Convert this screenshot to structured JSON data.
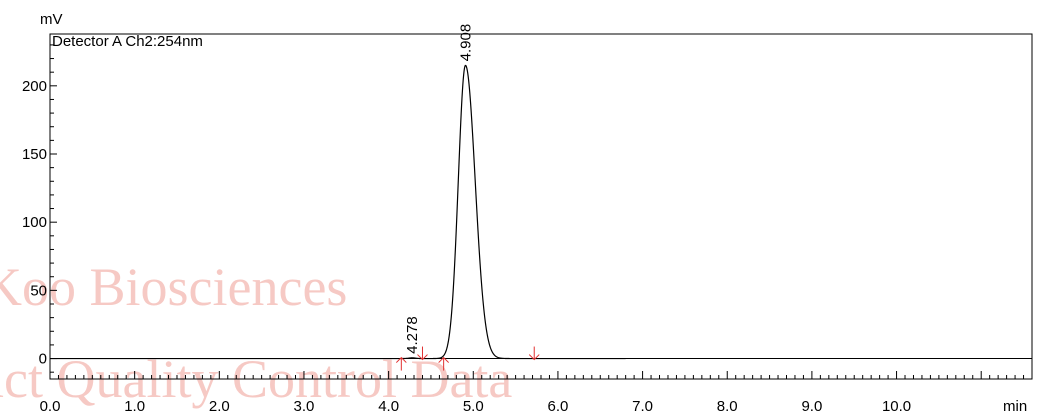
{
  "chart_data": {
    "type": "line",
    "detector_label": "Detector A Ch2:254nm",
    "xlabel": "min",
    "ylabel": "mV",
    "xlim": [
      0.0,
      11.6
    ],
    "ylim": [
      -15,
      238
    ],
    "x_ticks": [
      "0.0",
      "1.0",
      "2.0",
      "3.0",
      "4.0",
      "5.0",
      "6.0",
      "7.0",
      "8.0",
      "9.0",
      "10.0"
    ],
    "y_ticks": [
      "0",
      "50",
      "100",
      "150",
      "200"
    ],
    "peaks": [
      {
        "label": "4.278",
        "rt": 4.278,
        "height": 0.5,
        "width": 0.04
      },
      {
        "label": "4.908",
        "rt": 4.908,
        "height": 215,
        "width": 0.085
      }
    ],
    "integration_marks": [
      4.15,
      4.4,
      4.65,
      5.72
    ],
    "grid": false,
    "colors": {
      "trace": "#000000",
      "marks": "#e23030",
      "watermark": "#f6c9c4",
      "axes": "#000000"
    }
  },
  "watermark": {
    "line1": "BioKoo Biosciences",
    "line2": "Product Quality Control Data"
  }
}
